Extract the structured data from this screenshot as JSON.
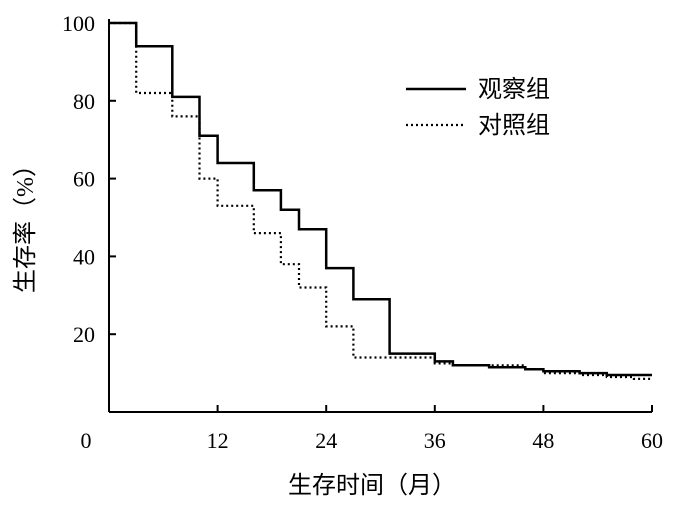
{
  "chart_data": {
    "type": "line",
    "subtype": "step (Kaplan-Meier survival curve)",
    "title": "",
    "xlabel": "生存时间（月）",
    "ylabel": "生存率（%）",
    "xlim": [
      0,
      60
    ],
    "ylim": [
      0,
      100
    ],
    "xticks": [
      12,
      24,
      36,
      48,
      60
    ],
    "xtick_labels": [
      "12",
      "24",
      "36",
      "48",
      "60"
    ],
    "yticks": [
      20,
      40,
      60,
      80,
      100
    ],
    "ytick_labels": [
      "20",
      "40",
      "60",
      "80",
      "100"
    ],
    "origin_label": "0",
    "grid": false,
    "legend_position": "top-right",
    "series": [
      {
        "name": "观察组",
        "line_style": "solid",
        "color": "#000000",
        "points": [
          [
            0,
            100
          ],
          [
            3,
            100
          ],
          [
            3,
            94
          ],
          [
            7,
            94
          ],
          [
            7,
            81
          ],
          [
            10,
            81
          ],
          [
            10,
            71
          ],
          [
            12,
            71
          ],
          [
            12,
            64
          ],
          [
            16,
            64
          ],
          [
            16,
            57
          ],
          [
            19,
            57
          ],
          [
            19,
            52
          ],
          [
            21,
            52
          ],
          [
            21,
            47
          ],
          [
            24,
            47
          ],
          [
            24,
            37
          ],
          [
            27,
            37
          ],
          [
            27,
            29
          ],
          [
            31,
            29
          ],
          [
            31,
            15
          ],
          [
            36,
            15
          ],
          [
            36,
            13
          ],
          [
            38,
            13
          ],
          [
            38,
            12
          ],
          [
            42,
            12
          ],
          [
            42,
            11.5
          ],
          [
            46,
            11.5
          ],
          [
            46,
            11
          ],
          [
            48,
            11
          ],
          [
            48,
            10.5
          ],
          [
            52,
            10.5
          ],
          [
            52,
            10
          ],
          [
            55,
            10
          ],
          [
            55,
            9.5
          ],
          [
            60,
            9.5
          ]
        ]
      },
      {
        "name": "对照组",
        "line_style": "dotted",
        "color": "#000000",
        "points": [
          [
            0,
            100
          ],
          [
            3,
            100
          ],
          [
            3,
            82
          ],
          [
            7,
            82
          ],
          [
            7,
            76
          ],
          [
            10,
            76
          ],
          [
            10,
            60
          ],
          [
            12,
            60
          ],
          [
            12,
            53
          ],
          [
            16,
            53
          ],
          [
            16,
            46
          ],
          [
            19,
            46
          ],
          [
            19,
            38
          ],
          [
            21,
            38
          ],
          [
            21,
            32
          ],
          [
            24,
            32
          ],
          [
            24,
            22
          ],
          [
            27,
            22
          ],
          [
            27,
            14
          ],
          [
            36,
            14
          ],
          [
            36,
            12.5
          ],
          [
            38,
            12.5
          ],
          [
            38,
            12
          ],
          [
            46,
            12
          ],
          [
            46,
            11
          ],
          [
            48,
            11
          ],
          [
            48,
            10
          ],
          [
            52,
            10
          ],
          [
            52,
            9.5
          ],
          [
            55,
            9.5
          ],
          [
            55,
            9
          ],
          [
            58,
            9
          ],
          [
            58,
            8.5
          ],
          [
            60,
            8.5
          ]
        ]
      }
    ]
  }
}
